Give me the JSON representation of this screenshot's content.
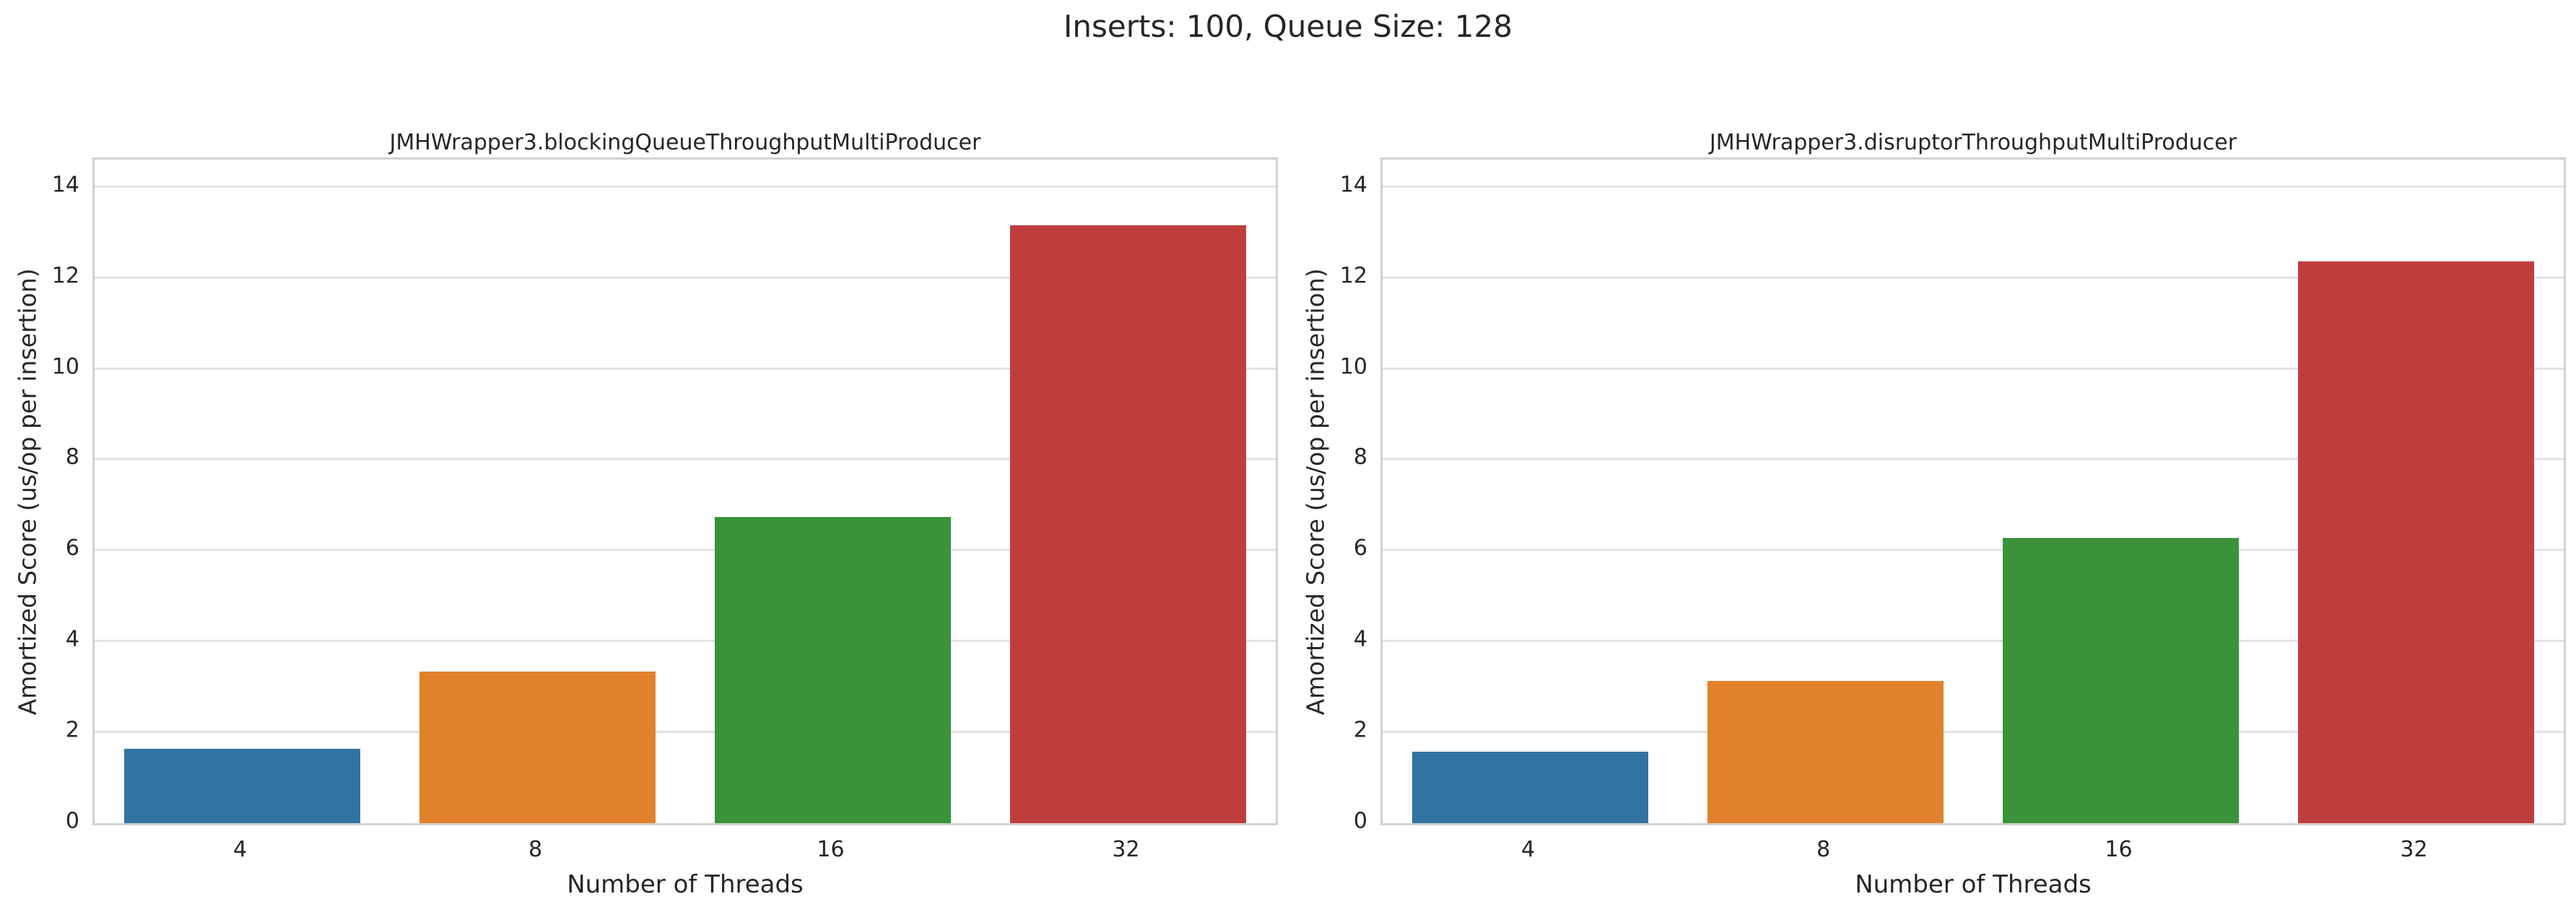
{
  "figure": {
    "suptitle": "Inserts: 100, Queue Size: 128",
    "background": "#ffffff",
    "text_color": "#262626",
    "grid_color": "#e2e2e2",
    "spine_color": "#d2d2d2"
  },
  "chart_data": [
    {
      "type": "bar",
      "title": "JMHWrapper3.blockingQueueThroughputMultiProducer",
      "categories": [
        "4",
        "8",
        "16",
        "32"
      ],
      "values": [
        1.63,
        3.33,
        6.73,
        13.15
      ],
      "bar_colors": [
        "#3274a1",
        "#e1812c",
        "#3a923a",
        "#c03d3e"
      ],
      "xlabel": "Number of Threads",
      "ylabel": "Amortized Score (us/op per insertion)",
      "ylim": [
        0,
        14.6
      ],
      "y_ticks": [
        0,
        2,
        4,
        6,
        8,
        10,
        12,
        14
      ],
      "grid": "horizontal",
      "legend": "none",
      "bar_rel_width": 0.8
    },
    {
      "type": "bar",
      "title": "JMHWrapper3.disruptorThroughputMultiProducer",
      "categories": [
        "4",
        "8",
        "16",
        "32"
      ],
      "values": [
        1.57,
        3.13,
        6.28,
        12.36
      ],
      "bar_colors": [
        "#3274a1",
        "#e1812c",
        "#3a923a",
        "#c03d3e"
      ],
      "xlabel": "Number of Threads",
      "ylabel": "Amortized Score (us/op per insertion)",
      "ylim": [
        0,
        14.6
      ],
      "y_ticks": [
        0,
        2,
        4,
        6,
        8,
        10,
        12,
        14
      ],
      "grid": "horizontal",
      "legend": "none",
      "bar_rel_width": 0.8
    }
  ]
}
